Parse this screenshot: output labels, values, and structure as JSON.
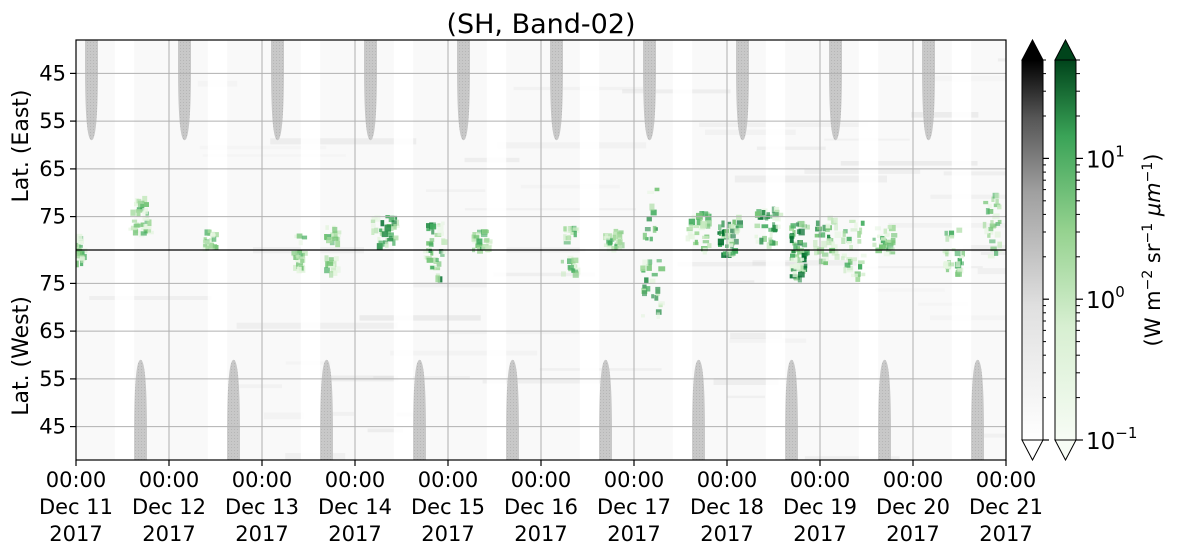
{
  "chart_data": {
    "type": "heatmap",
    "title": "(SH, Band-02)",
    "panels": [
      {
        "name": "east",
        "ylabel": "Lat. (East)",
        "yticks": [
          "45",
          "55",
          "65",
          "75"
        ],
        "lat_range": [
          38,
          82
        ],
        "orientation": "increasing-down"
      },
      {
        "name": "west",
        "ylabel": "Lat. (West)",
        "yticks": [
          "75",
          "65",
          "55",
          "45"
        ],
        "lat_range": [
          82,
          38
        ],
        "orientation": "increasing-up"
      }
    ],
    "x_axis": {
      "ticks": [
        {
          "time": "00:00",
          "date": "Dec 11",
          "year": "2017"
        },
        {
          "time": "00:00",
          "date": "Dec 12",
          "year": "2017"
        },
        {
          "time": "00:00",
          "date": "Dec 13",
          "year": "2017"
        },
        {
          "time": "00:00",
          "date": "Dec 14",
          "year": "2017"
        },
        {
          "time": "00:00",
          "date": "Dec 15",
          "year": "2017"
        },
        {
          "time": "00:00",
          "date": "Dec 16",
          "year": "2017"
        },
        {
          "time": "00:00",
          "date": "Dec 17",
          "year": "2017"
        },
        {
          "time": "00:00",
          "date": "Dec 18",
          "year": "2017"
        },
        {
          "time": "00:00",
          "date": "Dec 19",
          "year": "2017"
        },
        {
          "time": "00:00",
          "date": "Dec 20",
          "year": "2017"
        },
        {
          "time": "00:00",
          "date": "Dec 21",
          "year": "2017"
        }
      ],
      "range": [
        "2017-12-11 00:00",
        "2017-12-21 00:00"
      ]
    },
    "colorbars": [
      {
        "colormap": "Greys",
        "min_color": "#ffffff",
        "max_color": "#000000",
        "extend": "both"
      },
      {
        "colormap": "Greens",
        "min_color": "#f7fcf5",
        "max_color": "#00441b",
        "extend": "both"
      }
    ],
    "colorbar_scale": "log",
    "colorbar_range": [
      0.1,
      50
    ],
    "colorbar_ticks": [
      {
        "value": 0.1,
        "base": "10",
        "exp": "−1"
      },
      {
        "value": 1,
        "base": "10",
        "exp": "0"
      },
      {
        "value": 10,
        "base": "10",
        "exp": "1"
      }
    ],
    "colorbar_label": {
      "pre": "(W m",
      "e1": "−2",
      "mid": " sr",
      "e2": "−1",
      "mu": " μm",
      "e3": "−1",
      "post": ")"
    },
    "night_gaps": [
      {
        "start": "2017-12-11 10:00",
        "end": "2017-12-11 15:00"
      },
      {
        "start": "2017-12-12 10:00",
        "end": "2017-12-12 15:00"
      },
      {
        "start": "2017-12-13 10:00",
        "end": "2017-12-13 15:00"
      },
      {
        "start": "2017-12-14 10:00",
        "end": "2017-12-14 15:00"
      },
      {
        "start": "2017-12-15 10:00",
        "end": "2017-12-15 15:00"
      },
      {
        "start": "2017-12-16 10:00",
        "end": "2017-12-16 15:00"
      },
      {
        "start": "2017-12-17 10:00",
        "end": "2017-12-17 15:00"
      },
      {
        "start": "2017-12-18 10:00",
        "end": "2017-12-18 15:00"
      },
      {
        "start": "2017-12-19 10:00",
        "end": "2017-12-19 15:00"
      },
      {
        "start": "2017-12-20 10:00",
        "end": "2017-12-20 15:00"
      }
    ],
    "no_data_domes": {
      "east": [
        {
          "start": "2017-12-11 02:20",
          "end": "2017-12-11 05:40",
          "peak_lat": 59
        },
        {
          "start": "2017-12-12 02:20",
          "end": "2017-12-12 05:40",
          "peak_lat": 59
        },
        {
          "start": "2017-12-13 02:20",
          "end": "2017-12-13 05:40",
          "peak_lat": 59
        },
        {
          "start": "2017-12-14 02:20",
          "end": "2017-12-14 05:40",
          "peak_lat": 59
        },
        {
          "start": "2017-12-15 02:20",
          "end": "2017-12-15 05:40",
          "peak_lat": 59
        },
        {
          "start": "2017-12-16 02:20",
          "end": "2017-12-16 05:40",
          "peak_lat": 59
        },
        {
          "start": "2017-12-17 02:20",
          "end": "2017-12-17 05:40",
          "peak_lat": 59
        },
        {
          "start": "2017-12-18 02:20",
          "end": "2017-12-18 05:40",
          "peak_lat": 59
        },
        {
          "start": "2017-12-19 02:20",
          "end": "2017-12-19 05:40",
          "peak_lat": 59
        },
        {
          "start": "2017-12-20 02:20",
          "end": "2017-12-20 05:40",
          "peak_lat": 59
        }
      ],
      "west": [
        {
          "start": "2017-12-11 15:00",
          "end": "2017-12-11 18:20",
          "peak_lat": 59
        },
        {
          "start": "2017-12-12 15:00",
          "end": "2017-12-12 18:20",
          "peak_lat": 59
        },
        {
          "start": "2017-12-13 15:00",
          "end": "2017-12-13 18:20",
          "peak_lat": 59
        },
        {
          "start": "2017-12-14 15:00",
          "end": "2017-12-14 18:20",
          "peak_lat": 59
        },
        {
          "start": "2017-12-15 15:00",
          "end": "2017-12-15 18:20",
          "peak_lat": 59
        },
        {
          "start": "2017-12-16 15:00",
          "end": "2017-12-16 18:20",
          "peak_lat": 59
        },
        {
          "start": "2017-12-17 15:00",
          "end": "2017-12-17 18:20",
          "peak_lat": 59
        },
        {
          "start": "2017-12-18 15:00",
          "end": "2017-12-18 18:20",
          "peak_lat": 59
        },
        {
          "start": "2017-12-19 15:00",
          "end": "2017-12-19 18:20",
          "peak_lat": 59
        },
        {
          "start": "2017-12-20 15:00",
          "end": "2017-12-20 18:20",
          "peak_lat": 59
        }
      ]
    },
    "emission_blobs": [
      {
        "time": "2017-12-11 00:20",
        "lat": 81,
        "spread_h": 1.0,
        "spread_lat": 2,
        "intensity": 1.0
      },
      {
        "time": "2017-12-11 16:00",
        "lat": 75,
        "spread_h": 2.5,
        "spread_lat": 4,
        "intensity": 1.3
      },
      {
        "time": "2017-12-12 10:00",
        "lat": 80,
        "spread_h": 1.5,
        "spread_lat": 2,
        "intensity": 0.9
      },
      {
        "time": "2017-12-13 09:00",
        "lat": 80,
        "spread_h": 1.5,
        "spread_lat": 2,
        "intensity": 1.0
      },
      {
        "time": "2017-12-13 18:00",
        "lat": 79,
        "spread_h": 2.0,
        "spread_lat": 2,
        "intensity": 0.9
      },
      {
        "time": "2017-12-14 07:00",
        "lat": 78,
        "spread_h": 3.0,
        "spread_lat": 3,
        "intensity": 1.6
      },
      {
        "time": "2017-12-14 20:00",
        "lat": 79,
        "spread_h": 2.5,
        "spread_lat": 3,
        "intensity": 1.6
      },
      {
        "time": "2017-12-15 08:00",
        "lat": 80,
        "spread_h": 2.0,
        "spread_lat": 2,
        "intensity": 1.0
      },
      {
        "time": "2017-12-16 07:00",
        "lat": 79,
        "spread_h": 2.0,
        "spread_lat": 2,
        "intensity": 1.1
      },
      {
        "time": "2017-12-16 18:00",
        "lat": 80,
        "spread_h": 2.0,
        "spread_lat": 2,
        "intensity": 1.0
      },
      {
        "time": "2017-12-17 04:00",
        "lat": 74,
        "spread_h": 2.5,
        "spread_lat": 6,
        "intensity": 1.4
      },
      {
        "time": "2017-12-17 16:00",
        "lat": 78,
        "spread_h": 3.0,
        "spread_lat": 4,
        "intensity": 1.3
      },
      {
        "time": "2017-12-18 00:00",
        "lat": 79,
        "spread_h": 2.5,
        "spread_lat": 4,
        "intensity": 2.2
      },
      {
        "time": "2017-12-18 10:00",
        "lat": 77,
        "spread_h": 3.0,
        "spread_lat": 4,
        "intensity": 1.6
      },
      {
        "time": "2017-12-18 18:00",
        "lat": 79,
        "spread_h": 2.0,
        "spread_lat": 3,
        "intensity": 2.4
      },
      {
        "time": "2017-12-19 01:00",
        "lat": 80,
        "spread_h": 3.0,
        "spread_lat": 5,
        "intensity": 1.5
      },
      {
        "time": "2017-12-19 08:00",
        "lat": 79,
        "spread_h": 3.0,
        "spread_lat": 3,
        "intensity": 1.1
      },
      {
        "time": "2017-12-19 16:00",
        "lat": 80,
        "spread_h": 2.5,
        "spread_lat": 3,
        "intensity": 1.0
      },
      {
        "time": "2017-12-20 10:00",
        "lat": 80,
        "spread_h": 2.5,
        "spread_lat": 3,
        "intensity": 1.0
      },
      {
        "time": "2017-12-20 20:00",
        "lat": 77,
        "spread_h": 2.0,
        "spread_lat": 7,
        "intensity": 1.1
      }
    ]
  }
}
